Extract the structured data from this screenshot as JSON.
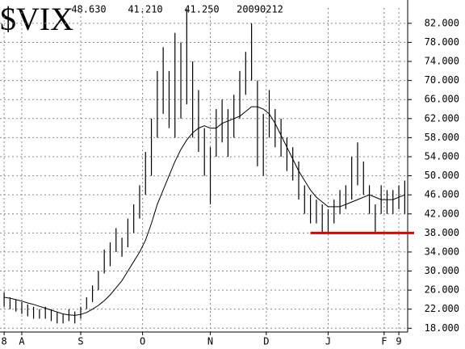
{
  "chart_data": {
    "type": "range_bar",
    "title": "$VIX",
    "header": [
      "48.630",
      "41.210",
      "41.250",
      "20090212"
    ],
    "x": [
      0,
      2,
      4,
      6,
      8,
      10,
      12,
      14,
      16,
      18,
      20,
      22,
      24,
      26,
      28,
      30,
      32,
      34,
      36,
      38,
      40,
      42,
      44,
      46,
      48,
      50,
      52,
      54,
      56,
      58,
      60,
      62,
      64,
      66,
      68,
      70,
      72,
      74,
      76,
      78,
      80,
      82,
      84,
      86,
      88,
      90,
      92,
      94,
      96,
      98,
      100,
      102,
      104,
      106,
      108,
      110,
      112,
      114,
      116,
      118,
      120,
      122,
      124,
      126,
      128,
      130,
      132,
      134,
      136
    ],
    "high": [
      25.5,
      24.5,
      24,
      23.5,
      23,
      22.5,
      22,
      22.5,
      22,
      21.5,
      21,
      22,
      21.5,
      22.5,
      24.5,
      27,
      30,
      34.5,
      36,
      39,
      37,
      41,
      44,
      48,
      55,
      62,
      72,
      77,
      72,
      80,
      78,
      85,
      74,
      68,
      60,
      56,
      64,
      66,
      64,
      67,
      72,
      76,
      82,
      70,
      63,
      68,
      64,
      62,
      58,
      56,
      53,
      48,
      46,
      45,
      44,
      43,
      45,
      47,
      48,
      54,
      57,
      53,
      48,
      44,
      48,
      47,
      47,
      48,
      49
    ],
    "low": [
      22.5,
      22,
      21.5,
      21,
      20.5,
      20,
      20,
      20,
      19.5,
      19,
      19,
      19.5,
      19,
      20,
      22,
      23.5,
      26,
      29.5,
      31,
      34,
      33,
      35,
      38,
      41,
      46,
      50,
      58,
      63,
      60,
      58,
      62,
      65,
      58,
      55,
      50,
      44,
      54,
      57,
      54,
      58,
      62,
      67,
      70,
      52,
      50,
      58,
      56,
      54,
      51,
      49,
      45,
      42,
      40,
      40,
      38,
      38,
      40,
      42,
      43,
      45,
      48,
      46,
      42,
      38,
      42,
      42,
      42,
      43,
      42
    ],
    "ma": [
      24.5,
      24.3,
      24,
      23.7,
      23.3,
      23,
      22.6,
      22.2,
      21.8,
      21.4,
      21,
      20.8,
      20.7,
      20.9,
      21.3,
      22,
      22.8,
      23.8,
      25,
      26.5,
      28,
      30,
      32,
      34,
      36.5,
      40,
      44,
      47,
      50,
      53,
      55.5,
      57.5,
      59,
      60,
      60.5,
      60,
      60,
      61,
      61.5,
      62,
      62.5,
      63.5,
      64.5,
      64.5,
      64,
      63,
      61,
      58.5,
      56,
      53.5,
      51,
      49,
      47,
      45.5,
      44.5,
      43.5,
      43.5,
      43.5,
      44,
      44.5,
      45,
      45.5,
      46,
      45.5,
      45,
      45,
      45,
      45.5,
      46
    ],
    "color": "#000000",
    "hline": {
      "y": 38,
      "x_start": 104,
      "color": "#e00000"
    },
    "xlim": [
      -1.4,
      137
    ],
    "xticks": [
      {
        "value": 0,
        "label": "8"
      },
      {
        "value": 6,
        "label": "A"
      },
      {
        "value": 26,
        "label": "S"
      },
      {
        "value": 47,
        "label": "O"
      },
      {
        "value": 70,
        "label": "N"
      },
      {
        "value": 89,
        "label": "D"
      },
      {
        "value": 110,
        "label": "J"
      },
      {
        "value": 129,
        "label": "F"
      },
      {
        "value": 134,
        "label": "9"
      }
    ],
    "ylim": [
      17.2,
      85.2
    ],
    "yticks": [
      {
        "value": 18,
        "label": "18.000"
      },
      {
        "value": 22,
        "label": "22.000"
      },
      {
        "value": 26,
        "label": "26.000"
      },
      {
        "value": 30,
        "label": "30.000"
      },
      {
        "value": 34,
        "label": "34.000"
      },
      {
        "value": 38,
        "label": "38.000"
      },
      {
        "value": 42,
        "label": "42.000"
      },
      {
        "value": 46,
        "label": "46.000"
      },
      {
        "value": 50,
        "label": "50.000"
      },
      {
        "value": 54,
        "label": "54.000"
      },
      {
        "value": 58,
        "label": "58.000"
      },
      {
        "value": 62,
        "label": "62.000"
      },
      {
        "value": 66,
        "label": "66.000"
      },
      {
        "value": 70,
        "label": "70.000"
      },
      {
        "value": 74,
        "label": "74.000"
      },
      {
        "value": 78,
        "label": "78.000"
      },
      {
        "value": 82,
        "label": "82.000"
      }
    ],
    "grid": true
  }
}
